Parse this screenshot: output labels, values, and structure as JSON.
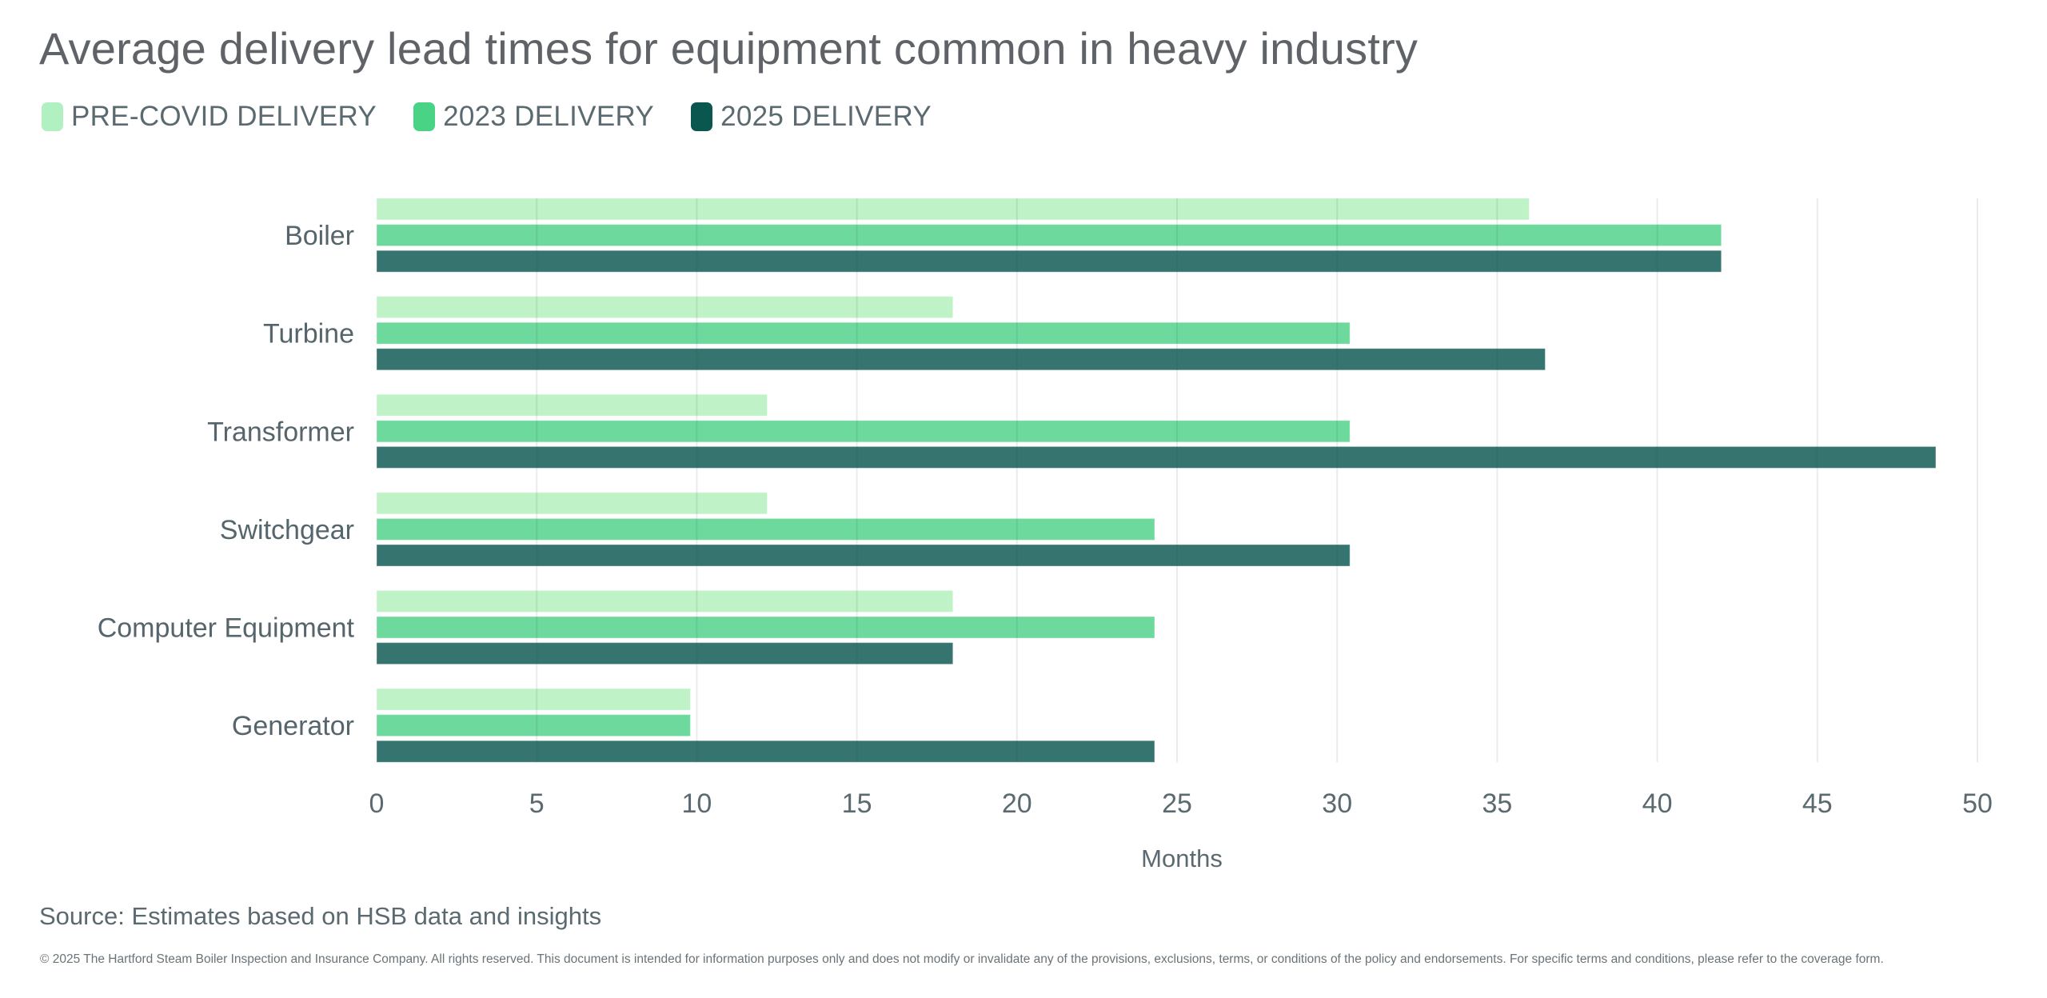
{
  "chart_data": {
    "type": "bar",
    "orientation": "horizontal",
    "title": "Average delivery lead times for equipment common in heavy industry",
    "xlabel": "Months",
    "ylabel": "",
    "xlim": [
      0,
      50
    ],
    "xticks": [
      0,
      5,
      10,
      15,
      20,
      25,
      30,
      35,
      40,
      45,
      50
    ],
    "grid": "vertical",
    "legend_position": "top-left",
    "categories": [
      "Boiler",
      "Turbine",
      "Transformer",
      "Switchgear",
      "Computer Equipment",
      "Generator"
    ],
    "series": [
      {
        "name": "PRE-COVID DELIVERY",
        "color": "#c0f2c8",
        "legend_color": "#b1f0c0",
        "values": [
          36,
          18,
          12.2,
          12.2,
          18,
          9.8
        ]
      },
      {
        "name": "2023 DELIVERY",
        "color": "#6ed99d",
        "legend_color": "#48d484",
        "values": [
          42,
          30.4,
          30.4,
          24.3,
          24.3,
          9.8
        ]
      },
      {
        "name": "2025 DELIVERY",
        "color": "#367470",
        "legend_color": "#09574f",
        "values": [
          42,
          36.5,
          48.7,
          30.4,
          18,
          24.3
        ]
      }
    ]
  },
  "footer": {
    "source": "Source: Estimates based on HSB data and insights",
    "copyright": "© 2025 The Hartford Steam Boiler Inspection and Insurance Company. All rights reserved. This document is intended for information purposes only and does not modify or invalidate any of the provisions, exclusions, terms, or conditions of the policy and endorsements. For specific terms and conditions, please refer to the coverage form."
  }
}
